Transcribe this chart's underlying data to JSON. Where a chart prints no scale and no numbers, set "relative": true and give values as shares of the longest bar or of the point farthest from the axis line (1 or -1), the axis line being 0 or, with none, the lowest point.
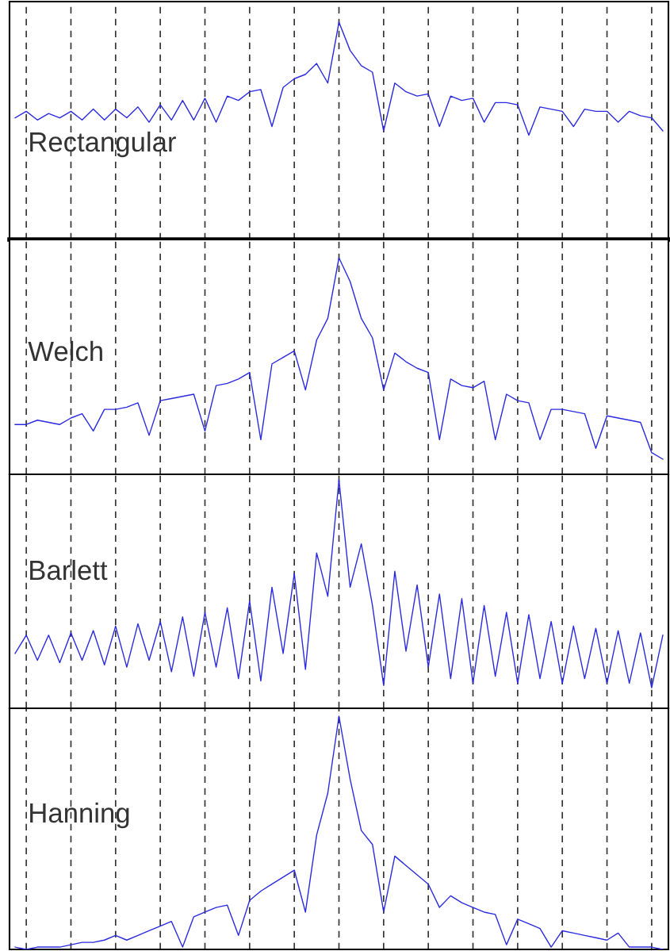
{
  "chart_data": [
    {
      "type": "line",
      "title": "Rectangular",
      "relative": true,
      "color": "#2a2ae0",
      "grid": "x",
      "categories": [
        null,
        null,
        null,
        null,
        null,
        null,
        null,
        null,
        null,
        null,
        null,
        null,
        null,
        null,
        null,
        null,
        null,
        null,
        null,
        null,
        null,
        null,
        null,
        null,
        null,
        null,
        null,
        null,
        null,
        null,
        null,
        null,
        null,
        null,
        null,
        null,
        null,
        null,
        null,
        null,
        null,
        null,
        null,
        null,
        null,
        null,
        null,
        null,
        null,
        null,
        null,
        null,
        null,
        null,
        null,
        null,
        null,
        null,
        null
      ],
      "values": [
        0.56,
        0.59,
        0.55,
        0.58,
        0.56,
        0.59,
        0.55,
        0.6,
        0.55,
        0.6,
        0.56,
        0.61,
        0.54,
        0.62,
        0.55,
        0.64,
        0.55,
        0.65,
        0.54,
        0.66,
        0.64,
        0.68,
        0.69,
        0.52,
        0.7,
        0.74,
        0.76,
        0.81,
        0.72,
        1.0,
        0.87,
        0.8,
        0.77,
        0.5,
        0.72,
        0.68,
        0.66,
        0.67,
        0.52,
        0.66,
        0.64,
        0.65,
        0.54,
        0.63,
        0.63,
        0.62,
        0.48,
        0.61,
        0.6,
        0.59,
        0.52,
        0.6,
        0.59,
        0.59,
        0.54,
        0.59,
        0.57,
        0.56,
        0.5
      ]
    },
    {
      "type": "line",
      "title": "Welch",
      "relative": true,
      "color": "#2a2ae0",
      "grid": "x",
      "categories": [
        null,
        null,
        null,
        null,
        null,
        null,
        null,
        null,
        null,
        null,
        null,
        null,
        null,
        null,
        null,
        null,
        null,
        null,
        null,
        null,
        null,
        null,
        null,
        null,
        null,
        null,
        null,
        null,
        null,
        null,
        null,
        null,
        null,
        null,
        null,
        null,
        null,
        null,
        null,
        null,
        null,
        null,
        null,
        null,
        null,
        null,
        null,
        null,
        null,
        null,
        null,
        null,
        null,
        null,
        null,
        null,
        null,
        null,
        null
      ],
      "values": [
        0.23,
        0.23,
        0.25,
        0.24,
        0.23,
        0.26,
        0.28,
        0.2,
        0.3,
        0.3,
        0.31,
        0.33,
        0.18,
        0.34,
        0.35,
        0.36,
        0.37,
        0.2,
        0.41,
        0.42,
        0.44,
        0.47,
        0.16,
        0.51,
        0.54,
        0.57,
        0.39,
        0.62,
        0.72,
        1.0,
        0.89,
        0.72,
        0.63,
        0.39,
        0.56,
        0.52,
        0.49,
        0.47,
        0.16,
        0.44,
        0.41,
        0.4,
        0.43,
        0.16,
        0.37,
        0.34,
        0.33,
        0.16,
        0.3,
        0.3,
        0.29,
        0.28,
        0.12,
        0.27,
        0.26,
        0.25,
        0.24,
        0.1,
        0.07
      ]
    },
    {
      "type": "line",
      "title": "Barlett",
      "relative": true,
      "color": "#2a2ae0",
      "grid": "x",
      "categories": [
        null,
        null,
        null,
        null,
        null,
        null,
        null,
        null,
        null,
        null,
        null,
        null,
        null,
        null,
        null,
        null,
        null,
        null,
        null,
        null,
        null,
        null,
        null,
        null,
        null,
        null,
        null,
        null,
        null,
        null,
        null,
        null,
        null,
        null,
        null,
        null,
        null,
        null,
        null,
        null,
        null,
        null,
        null,
        null,
        null,
        null,
        null,
        null,
        null,
        null,
        null,
        null,
        null,
        null,
        null,
        null,
        null,
        null,
        null
      ],
      "values": [
        0.24,
        0.32,
        0.21,
        0.32,
        0.2,
        0.33,
        0.21,
        0.34,
        0.19,
        0.36,
        0.18,
        0.37,
        0.21,
        0.38,
        0.16,
        0.4,
        0.14,
        0.42,
        0.18,
        0.44,
        0.13,
        0.47,
        0.12,
        0.53,
        0.24,
        0.59,
        0.17,
        0.68,
        0.49,
        1.0,
        0.53,
        0.72,
        0.45,
        0.1,
        0.6,
        0.25,
        0.54,
        0.18,
        0.5,
        0.13,
        0.48,
        0.11,
        0.45,
        0.14,
        0.42,
        0.11,
        0.41,
        0.13,
        0.38,
        0.11,
        0.36,
        0.13,
        0.35,
        0.11,
        0.34,
        0.11,
        0.33,
        0.09,
        0.32
      ]
    },
    {
      "type": "line",
      "title": "Hanning",
      "relative": true,
      "color": "#2a2ae0",
      "grid": "x",
      "categories": [
        null,
        null,
        null,
        null,
        null,
        null,
        null,
        null,
        null,
        null,
        null,
        null,
        null,
        null,
        null,
        null,
        null,
        null,
        null,
        null,
        null,
        null,
        null,
        null,
        null,
        null,
        null,
        null,
        null,
        null,
        null,
        null,
        null,
        null,
        null,
        null,
        null,
        null,
        null,
        null,
        null,
        null,
        null,
        null,
        null,
        null,
        null,
        null,
        null,
        null,
        null,
        null,
        null,
        null,
        null,
        null,
        null,
        null,
        null
      ],
      "values": [
        0.01,
        0.0,
        0.01,
        0.01,
        0.01,
        0.02,
        0.03,
        0.03,
        0.04,
        0.06,
        0.04,
        0.06,
        0.08,
        0.1,
        0.12,
        0.01,
        0.14,
        0.16,
        0.18,
        0.19,
        0.06,
        0.21,
        0.25,
        0.28,
        0.31,
        0.34,
        0.16,
        0.49,
        0.67,
        1.0,
        0.73,
        0.51,
        0.45,
        0.16,
        0.4,
        0.36,
        0.32,
        0.28,
        0.18,
        0.23,
        0.2,
        0.18,
        0.16,
        0.15,
        0.02,
        0.13,
        0.11,
        0.09,
        0.01,
        0.08,
        0.07,
        0.06,
        0.05,
        0.04,
        0.07,
        0.01,
        0.01,
        0.01,
        0.0
      ]
    }
  ]
}
